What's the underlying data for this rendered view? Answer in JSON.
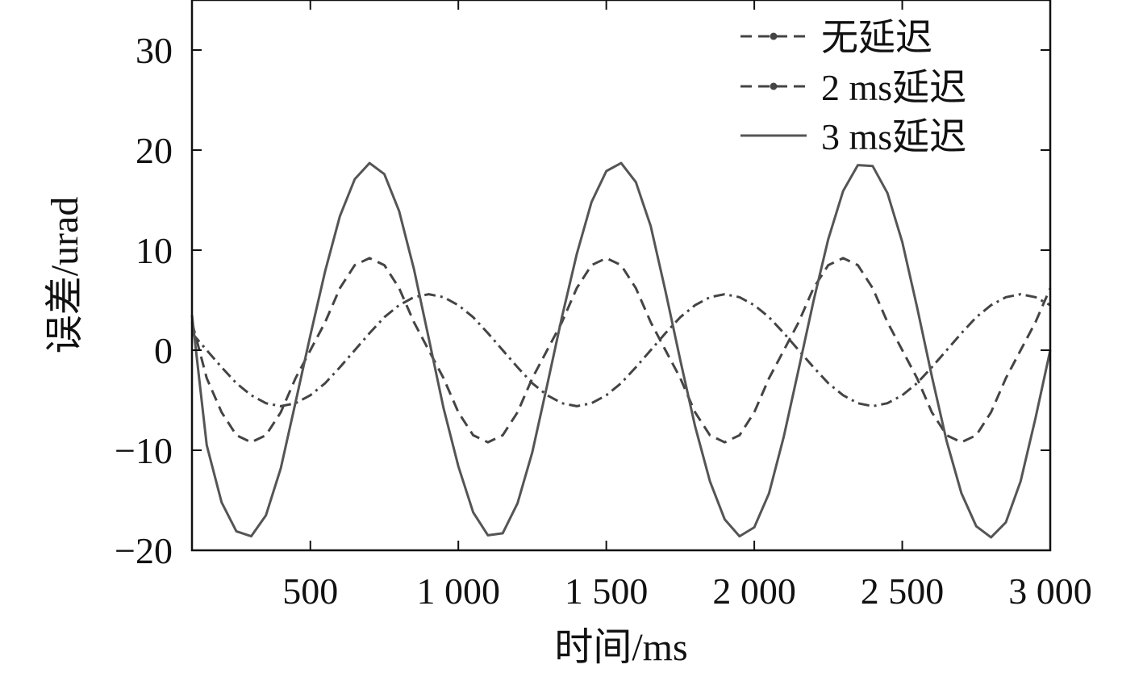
{
  "chart_data": {
    "type": "line",
    "xlabel": "时间/ms",
    "ylabel": "误差/urad",
    "xlim": [
      100,
      3000
    ],
    "ylim": [
      -20,
      35
    ],
    "x_ticks": [
      500,
      1000,
      1500,
      2000,
      2500,
      3000
    ],
    "x_tick_labels": [
      "500",
      "1 000",
      "1 500",
      "2 000",
      "2 500",
      "3 000"
    ],
    "y_ticks": [
      -20,
      -10,
      0,
      10,
      20,
      30
    ],
    "y_tick_labels": [
      "−20",
      "−10",
      "0",
      "10",
      "20",
      "30"
    ],
    "grid": false,
    "legend_position": "top-right",
    "series": [
      {
        "name": "无延迟",
        "style": "dash-dot",
        "color": "#444444",
        "x": [
          100,
          150,
          200,
          250,
          300,
          350,
          400,
          450,
          500,
          550,
          600,
          650,
          700,
          750,
          800,
          850,
          900,
          950,
          1000,
          1050,
          1100,
          1150,
          1200,
          1250,
          1300,
          1350,
          1400,
          1450,
          1500,
          1550,
          1600,
          1650,
          1700,
          1750,
          1800,
          1850,
          1900,
          1950,
          2000,
          2050,
          2100,
          2150,
          2200,
          2250,
          2300,
          2350,
          2400,
          2450,
          2500,
          2550,
          2600,
          2650,
          2700,
          2750,
          2800,
          2850,
          2900,
          2950,
          3000
        ],
        "y": [
          1.7,
          0.0,
          -1.7,
          -3.3,
          -4.5,
          -5.3,
          -5.6,
          -5.3,
          -4.5,
          -3.3,
          -1.7,
          0.0,
          1.7,
          3.3,
          4.5,
          5.3,
          5.6,
          5.3,
          4.5,
          3.3,
          1.7,
          0.0,
          -1.7,
          -3.3,
          -4.5,
          -5.3,
          -5.6,
          -5.3,
          -4.5,
          -3.3,
          -1.7,
          0.0,
          1.7,
          3.3,
          4.5,
          5.3,
          5.6,
          5.3,
          4.5,
          3.3,
          1.7,
          0.0,
          -1.7,
          -3.3,
          -4.5,
          -5.3,
          -5.6,
          -5.3,
          -4.5,
          -3.3,
          -1.7,
          0.0,
          1.7,
          3.3,
          4.5,
          5.3,
          5.6,
          5.3,
          4.5
        ]
      },
      {
        "name": "2 ms延迟",
        "style": "dashed",
        "color": "#444444",
        "x": [
          100,
          150,
          200,
          250,
          300,
          350,
          400,
          450,
          500,
          550,
          600,
          650,
          700,
          750,
          800,
          850,
          900,
          950,
          1000,
          1050,
          1100,
          1150,
          1200,
          1250,
          1300,
          1350,
          1400,
          1450,
          1500,
          1550,
          1600,
          1650,
          1700,
          1750,
          1800,
          1850,
          1900,
          1950,
          2000,
          2050,
          2100,
          2150,
          2200,
          2250,
          2300,
          2350,
          2400,
          2450,
          2500,
          2550,
          2600,
          2650,
          2700,
          2750,
          2800,
          2850,
          2900,
          2950,
          3000
        ],
        "y": [
          2.8,
          -2.8,
          -6.2,
          -8.5,
          -9.2,
          -8.5,
          -6.2,
          -2.8,
          0.0,
          2.8,
          6.2,
          8.5,
          9.2,
          8.5,
          6.2,
          2.8,
          0.0,
          -2.8,
          -6.2,
          -8.5,
          -9.2,
          -8.5,
          -6.2,
          -2.8,
          0.0,
          2.8,
          6.2,
          8.5,
          9.2,
          8.5,
          6.2,
          2.8,
          0.0,
          -2.8,
          -6.2,
          -8.5,
          -9.2,
          -8.5,
          -6.2,
          -2.8,
          0.0,
          2.8,
          6.2,
          8.5,
          9.2,
          8.5,
          6.2,
          2.8,
          0.0,
          -2.8,
          -6.2,
          -8.5,
          -9.2,
          -8.5,
          -6.2,
          -2.8,
          0.0,
          2.8,
          6.2
        ]
      },
      {
        "name": "3 ms延迟",
        "style": "solid",
        "color": "#555555",
        "x": [
          100,
          150,
          200,
          250,
          300,
          350,
          400,
          450,
          500,
          550,
          600,
          650,
          700,
          750,
          800,
          850,
          900,
          950,
          1000,
          1050,
          1100,
          1150,
          1200,
          1250,
          1300,
          1350,
          1400,
          1450,
          1500,
          1550,
          1600,
          1650,
          1700,
          1750,
          1800,
          1850,
          1900,
          1950,
          2000,
          2050,
          2100,
          2150,
          2200,
          2250,
          2300,
          2350,
          2400,
          2450,
          2500,
          2550,
          2600,
          2650,
          2700,
          2750,
          2800,
          2850,
          2900,
          2950,
          3000
        ],
        "y": [
          3.5,
          -9.5,
          -15.2,
          -18.1,
          -18.6,
          -16.5,
          -11.8,
          -5.2,
          1.5,
          7.9,
          13.4,
          17.1,
          18.7,
          17.6,
          13.9,
          8.1,
          1.2,
          -5.8,
          -11.6,
          -16.2,
          -18.5,
          -18.3,
          -15.3,
          -10.2,
          -3.5,
          3.3,
          9.6,
          14.8,
          17.9,
          18.7,
          16.8,
          12.4,
          5.9,
          -1.0,
          -7.6,
          -13.1,
          -16.9,
          -18.6,
          -17.7,
          -14.3,
          -8.6,
          -1.9,
          4.9,
          11.1,
          15.9,
          18.5,
          18.4,
          15.7,
          10.8,
          4.3,
          -2.6,
          -9.1,
          -14.3,
          -17.6,
          -18.7,
          -17.2,
          -13.1,
          -6.8,
          0.0
        ]
      }
    ]
  }
}
